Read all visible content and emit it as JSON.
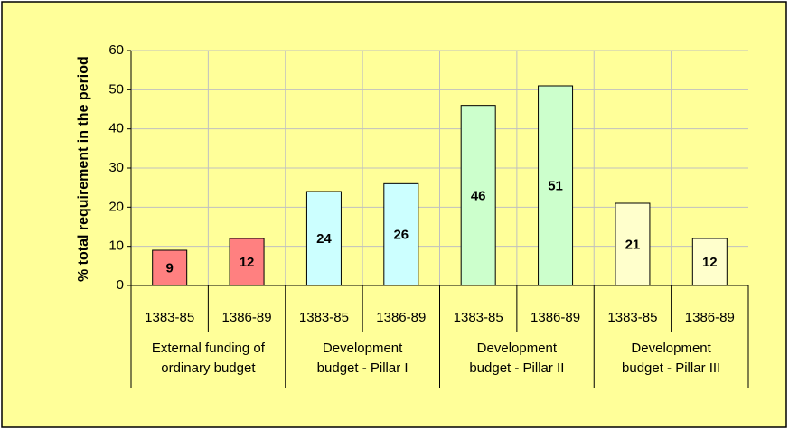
{
  "chart_data": {
    "type": "bar",
    "y_label": "% total requirement in the period",
    "groups": [
      {
        "label": [
          "External funding of",
          "ordinary budget"
        ],
        "categories": [
          "1383-85",
          "1386-89"
        ]
      },
      {
        "label": [
          "Development",
          "budget - Pillar I"
        ],
        "categories": [
          "1383-85",
          "1386-89"
        ]
      },
      {
        "label": [
          "Development",
          "budget - Pillar II"
        ],
        "categories": [
          "1383-85",
          "1386-89"
        ]
      },
      {
        "label": [
          "Development",
          "budget - Pillar III"
        ],
        "categories": [
          "1383-85",
          "1386-89"
        ]
      }
    ],
    "values": [
      9,
      12,
      24,
      26,
      46,
      51,
      21,
      12
    ],
    "colors": [
      "#ff8080",
      "#ff8080",
      "#ccffff",
      "#ccffff",
      "#ccffcc",
      "#ccffcc",
      "#ffffcc",
      "#ffffcc"
    ],
    "ylim": [
      0,
      60
    ],
    "yticks": [
      0,
      10,
      20,
      30,
      40,
      50,
      60
    ],
    "grid": true
  }
}
